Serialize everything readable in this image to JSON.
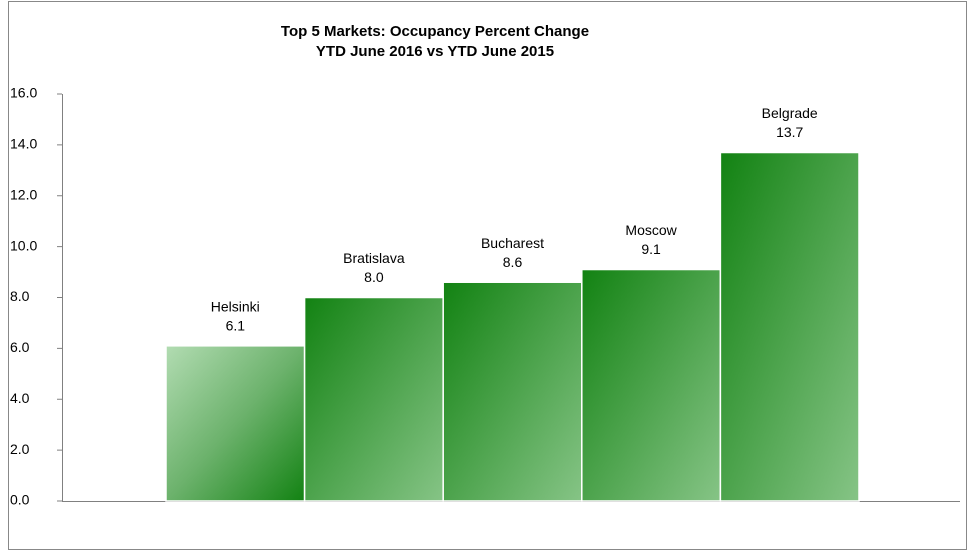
{
  "chart_data": {
    "type": "bar",
    "title": "Top 5 Markets: Occupancy Percent Change",
    "subtitle": "YTD June 2016 vs YTD June 2015",
    "categories": [
      "Helsinki",
      "Bratislava",
      "Bucharest",
      "Moscow",
      "Belgrade"
    ],
    "values": [
      6.1,
      8.0,
      8.6,
      9.1,
      13.7
    ],
    "value_labels": [
      "6.1",
      "8.0",
      "8.6",
      "9.1",
      "13.7"
    ],
    "color": "#128212",
    "ylim": [
      0,
      16
    ],
    "yticks": [
      {
        "value": 0,
        "label": "0.0"
      },
      {
        "value": 2,
        "label": "2.0"
      },
      {
        "value": 4,
        "label": "4.0"
      },
      {
        "value": 6,
        "label": "6.0"
      },
      {
        "value": 8,
        "label": "8.0"
      },
      {
        "value": 10,
        "label": "10.0"
      },
      {
        "value": 12,
        "label": "12.0"
      },
      {
        "value": 14,
        "label": "14.0"
      },
      {
        "value": 16,
        "label": "16.0"
      }
    ],
    "grid": false
  }
}
